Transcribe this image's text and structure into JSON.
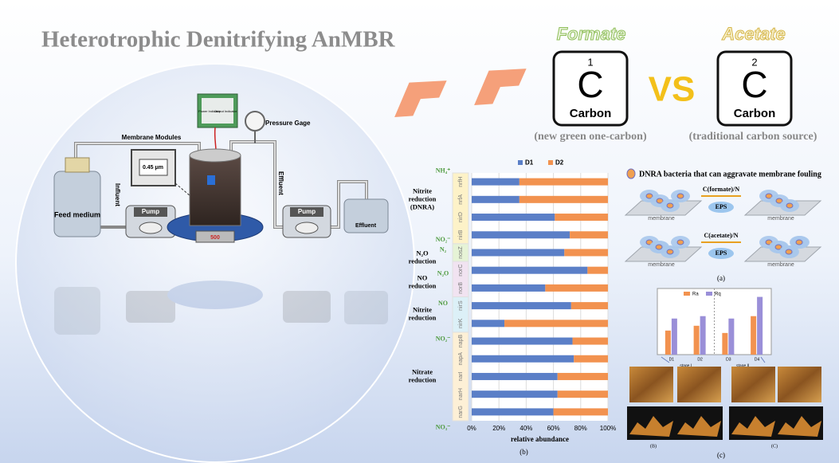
{
  "title": "Heterotrophic Denitrifying AnMBR",
  "reactor": {
    "feed": "Feed medium",
    "influent": "Influent",
    "pump_in": "Pump",
    "membrane_modules": "Membrane Modules",
    "pore_size": "0.45 μm",
    "power": "Power Indicator",
    "output": "Output Indicator",
    "pressure_gage": "Pressure Gage",
    "effluent_arrow": "Effluent",
    "pump_out": "Pump",
    "effluent_tank": "Effluent",
    "stirrer": "500"
  },
  "carbon": [
    {
      "name": "Formate",
      "number": "1",
      "symbol": "C",
      "element": "Carbon",
      "note": "(new green one-carbon)"
    },
    {
      "name": "Acetate",
      "number": "2",
      "symbol": "C",
      "element": "Carbon",
      "note": "(traditional carbon source)"
    }
  ],
  "vs": "VS",
  "fouling": {
    "legend": "DNRA bacteria that can aggravate membrane fouling",
    "rows": [
      {
        "ratio": "C(formate)/N",
        "eps": "EPS",
        "membranes": [
          "membrane",
          "membrane"
        ]
      },
      {
        "ratio": "C(acetate)/N",
        "eps": "EPS",
        "membranes": [
          "membrane",
          "membrane"
        ]
      }
    ],
    "caption": "(a)"
  },
  "pathways": {
    "groups": [
      "Nitrite reduction (DNRA)",
      "N₂O reduction",
      "NO reduction",
      "Nitrite reduction",
      "Nitrate reduction"
    ],
    "compounds": [
      "NH₄⁺",
      "NO₂⁻",
      "N₂",
      "N₂O",
      "NO",
      "NO₂⁻",
      "NO₃⁻"
    ]
  },
  "chart_data": [
    {
      "type": "bar",
      "orientation": "horizontal",
      "stacked": true,
      "categories": [
        "nrfH",
        "nrfA",
        "nirD",
        "nirB",
        "nosZ",
        "norC",
        "norB",
        "nirS",
        "nirK",
        "napB",
        "napA",
        "narI",
        "narH",
        "narG"
      ],
      "series": [
        {
          "name": "D1",
          "color": "#5b7fc7",
          "values": [
            35,
            35,
            61,
            72,
            68,
            85,
            54,
            73,
            24,
            74,
            75,
            63,
            63,
            60
          ]
        },
        {
          "name": "D2",
          "color": "#f2924f",
          "values": [
            65,
            65,
            39,
            28,
            32,
            15,
            46,
            27,
            76,
            26,
            25,
            37,
            37,
            40
          ]
        }
      ],
      "xlim": [
        0,
        100
      ],
      "xticks": [
        {
          "value": 0,
          "label": "0%"
        },
        {
          "value": 20,
          "label": "20%"
        },
        {
          "value": 40,
          "label": "40%"
        },
        {
          "value": 60,
          "label": "60%"
        },
        {
          "value": 80,
          "label": "80%"
        },
        {
          "value": 100,
          "label": "100%"
        }
      ],
      "xlabel": "relative abundance",
      "caption": "(b)",
      "grid": true,
      "legend": "top"
    },
    {
      "type": "bar",
      "categories": [
        "D1",
        "D2",
        "D3",
        "D4"
      ],
      "groups": [
        "stage I",
        "stage II"
      ],
      "series": [
        {
          "name": "Ra",
          "color": "#f2924f",
          "values": [
            20,
            24,
            18,
            32
          ]
        },
        {
          "name": "Rq",
          "color": "#9a8fd8",
          "values": [
            30,
            32,
            30,
            48
          ]
        }
      ],
      "ylim": [
        0,
        55
      ],
      "afm_captions": [
        "(B)",
        "(C)"
      ],
      "caption": "(c)"
    }
  ]
}
